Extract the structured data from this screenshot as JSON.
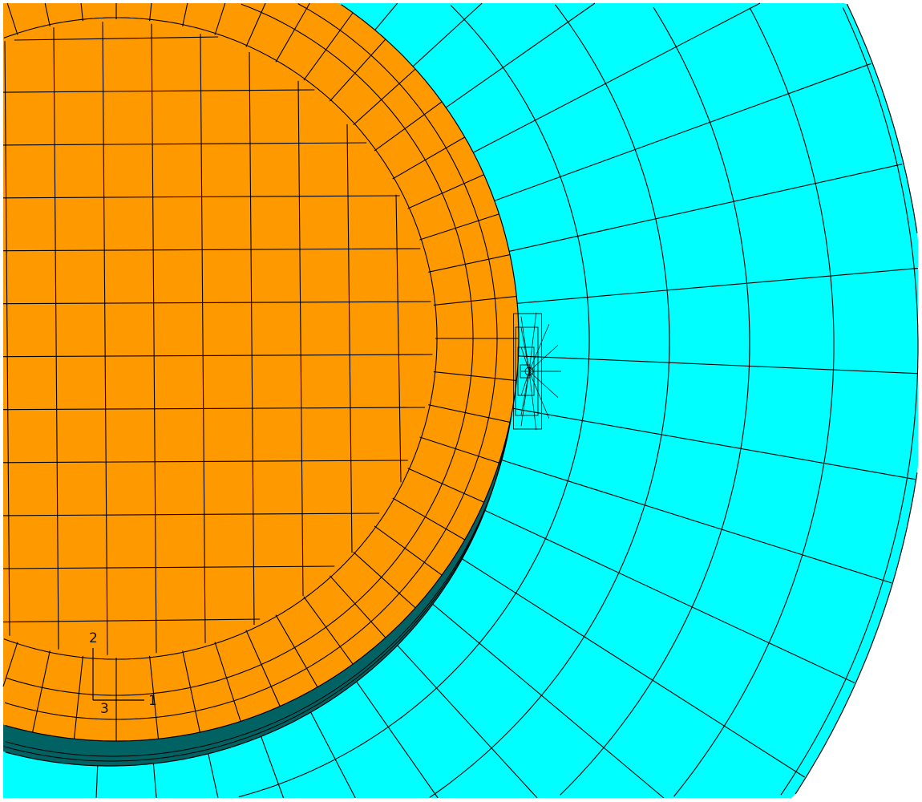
{
  "viewport": {
    "colors": {
      "background": "#ffffff",
      "outer_part": "#00ffff",
      "inner_part": "#ff9900",
      "contact_layer": "#006262",
      "mesh_lines": "#000000"
    }
  },
  "triad": {
    "axis_1": "1",
    "axis_2": "2",
    "axis_3": "3"
  }
}
